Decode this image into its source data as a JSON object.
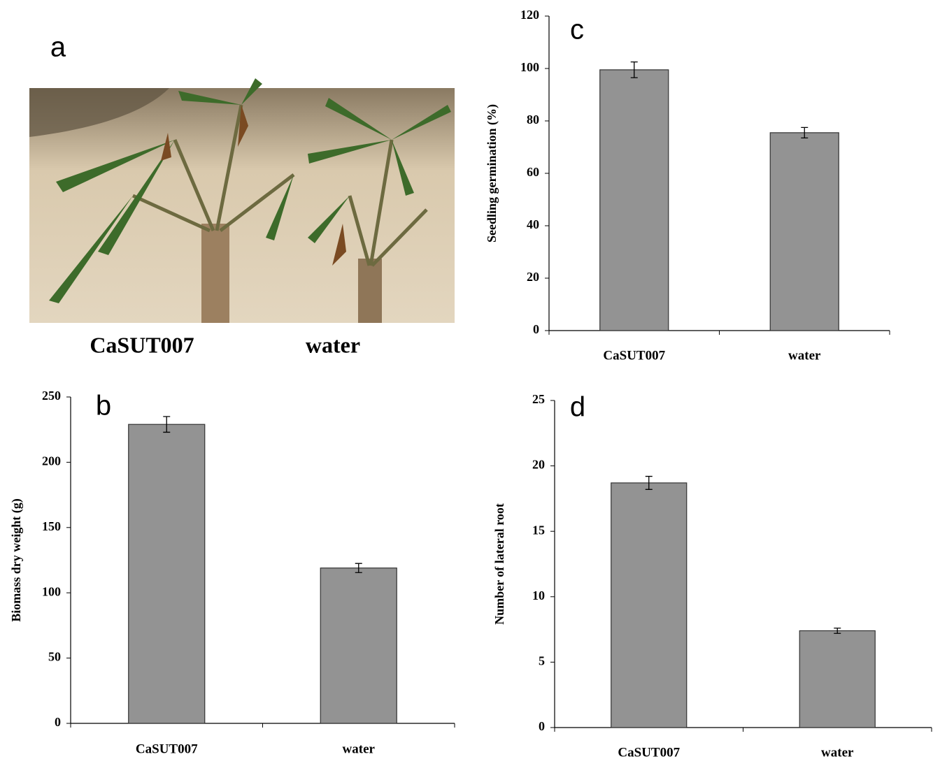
{
  "photo": {
    "label": "a",
    "captions": [
      "CaSUT007",
      "water"
    ]
  },
  "chart_data": [
    {
      "type": "bar",
      "panel_label": "b",
      "ylabel": "Biomass dry weight (g)",
      "categories": [
        "CaSUT007",
        "water"
      ],
      "values": [
        229,
        119
      ],
      "errors": [
        6,
        3.5
      ],
      "color": "#939393",
      "ylim": [
        0,
        250
      ],
      "yticks": [
        0,
        50,
        100,
        150,
        200,
        250
      ]
    },
    {
      "type": "bar",
      "panel_label": "c",
      "ylabel": "Seedling germination (%)",
      "categories": [
        "CaSUT007",
        "water"
      ],
      "values": [
        99.5,
        75.5
      ],
      "errors": [
        3,
        2
      ],
      "color": "#939393",
      "ylim": [
        0,
        120
      ],
      "yticks": [
        0,
        20,
        40,
        60,
        80,
        100,
        120
      ]
    },
    {
      "type": "bar",
      "panel_label": "d",
      "ylabel": "Number of lateral root",
      "categories": [
        "CaSUT007",
        "water"
      ],
      "values": [
        18.7,
        7.4
      ],
      "errors": [
        0.5,
        0.2
      ],
      "color": "#939393",
      "ylim": [
        0,
        25
      ],
      "yticks": [
        0,
        5,
        10,
        15,
        20,
        25
      ]
    }
  ]
}
